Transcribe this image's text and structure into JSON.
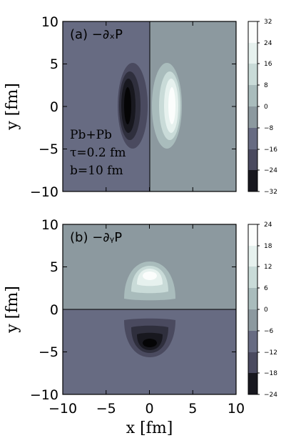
{
  "chart_data": [
    {
      "type": "heatmap",
      "title": "(a) −∂ₓP",
      "ylabel": "y [fm]",
      "xlabel": "",
      "xlim": [
        -10,
        10
      ],
      "ylim": [
        -10,
        10
      ],
      "y_ticks": [
        "10",
        "5",
        "0",
        "−5",
        "−10"
      ],
      "annotations": [
        "Pb+Pb",
        "τ=0.2 fm",
        "b=10 fm"
      ],
      "colorbar_ticks": [
        "32",
        "24",
        "16",
        "8",
        "0",
        "−8",
        "−16",
        "−24",
        "−32"
      ],
      "colorbar_range": [
        -32,
        32
      ],
      "contour_levels": [
        -32,
        -24,
        -16,
        -8,
        0,
        8,
        16,
        24,
        32
      ],
      "features": [
        {
          "kind": "negative lobe",
          "x_center": -2.5,
          "y_center": 0,
          "min_value": -32
        },
        {
          "kind": "positive lobe",
          "x_center": 2.5,
          "y_center": 0,
          "max_value": 32
        }
      ]
    },
    {
      "type": "heatmap",
      "title": "(b) −∂ᵧP",
      "ylabel": "y [fm]",
      "xlabel": "x [fm]",
      "xlim": [
        -10,
        10
      ],
      "ylim": [
        -10,
        10
      ],
      "x_ticks": [
        "−10",
        "−5",
        "0",
        "5",
        "10"
      ],
      "y_ticks": [
        "10",
        "5",
        "0",
        "−5",
        "−10"
      ],
      "colorbar_ticks": [
        "24",
        "18",
        "12",
        "6",
        "0",
        "−6",
        "−12",
        "−18",
        "−24"
      ],
      "colorbar_range": [
        -24,
        24
      ],
      "contour_levels": [
        -24,
        -18,
        -12,
        -6,
        0,
        6,
        12,
        18,
        24
      ],
      "features": [
        {
          "kind": "positive lobe",
          "x_center": 0,
          "y_center": 4,
          "max_value": 24
        },
        {
          "kind": "negative lobe",
          "x_center": 0,
          "y_center": -4,
          "min_value": -24
        }
      ]
    }
  ],
  "colors": {
    "neg_bg": "#676b82",
    "pos_bg": "#8c999f",
    "pos_1": "#a9bcbc",
    "pos_2": "#c9dbd8",
    "pos_3": "#e6f1ee",
    "pos_4": "#fbfdfc",
    "neg_1": "#4a4a5f",
    "neg_2": "#2f2f3d",
    "neg_3": "#18181f",
    "neg_4": "#050506"
  }
}
